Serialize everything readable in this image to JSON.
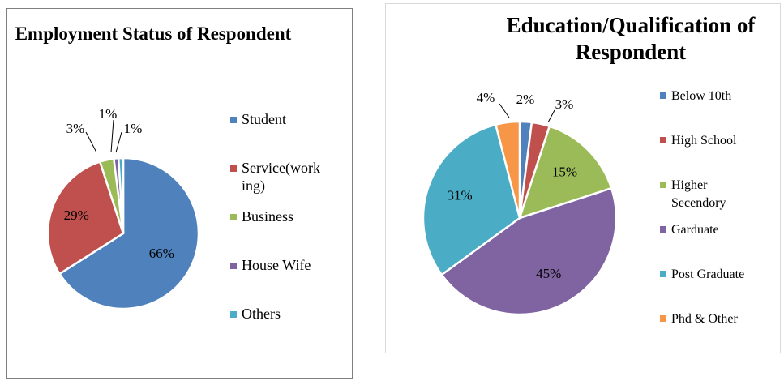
{
  "chart_data": [
    {
      "type": "pie",
      "title": "Employment Status of Respondent",
      "categories": [
        "Student",
        "Service(working)",
        "Business",
        "House Wife",
        "Others"
      ],
      "values": [
        66,
        29,
        3,
        1,
        1
      ],
      "data_labels": [
        "66%",
        "29%",
        "3%",
        "1%",
        "1%"
      ],
      "colors": [
        "#4f81bd",
        "#c0504d",
        "#9bbb59",
        "#8064a2",
        "#4bacc6"
      ],
      "legend": {
        "placement": "right",
        "entries": [
          {
            "label": "Student",
            "color": "#4f81bd"
          },
          {
            "label": "Service(working)",
            "color": "#c0504d"
          },
          {
            "label": "Business",
            "color": "#9bbb59"
          },
          {
            "label": "House Wife",
            "color": "#8064a2"
          },
          {
            "label": "Others",
            "color": "#4bacc6"
          }
        ]
      }
    },
    {
      "type": "pie",
      "title": "Education/Qualification of Respondent",
      "categories": [
        "Below 10th",
        "High School",
        "Higher Secendory",
        "Garduate",
        "Post Graduate",
        "Phd & Other"
      ],
      "values": [
        2,
        3,
        15,
        45,
        31,
        4
      ],
      "data_labels": [
        "2%",
        "3%",
        "15%",
        "45%",
        "31%",
        "4%"
      ],
      "colors": [
        "#4f81bd",
        "#c0504d",
        "#9bbb59",
        "#8064a2",
        "#4bacc6",
        "#f79646"
      ],
      "legend": {
        "placement": "right",
        "entries": [
          {
            "label": "Below 10th",
            "color": "#4f81bd"
          },
          {
            "label": "High School",
            "color": "#c0504d"
          },
          {
            "label": "Higher Secendory",
            "color": "#9bbb59"
          },
          {
            "label": "Garduate",
            "color": "#8064a2"
          },
          {
            "label": "Post Graduate",
            "color": "#4bacc6"
          },
          {
            "label": "Phd & Other",
            "color": "#f79646"
          }
        ]
      }
    }
  ]
}
